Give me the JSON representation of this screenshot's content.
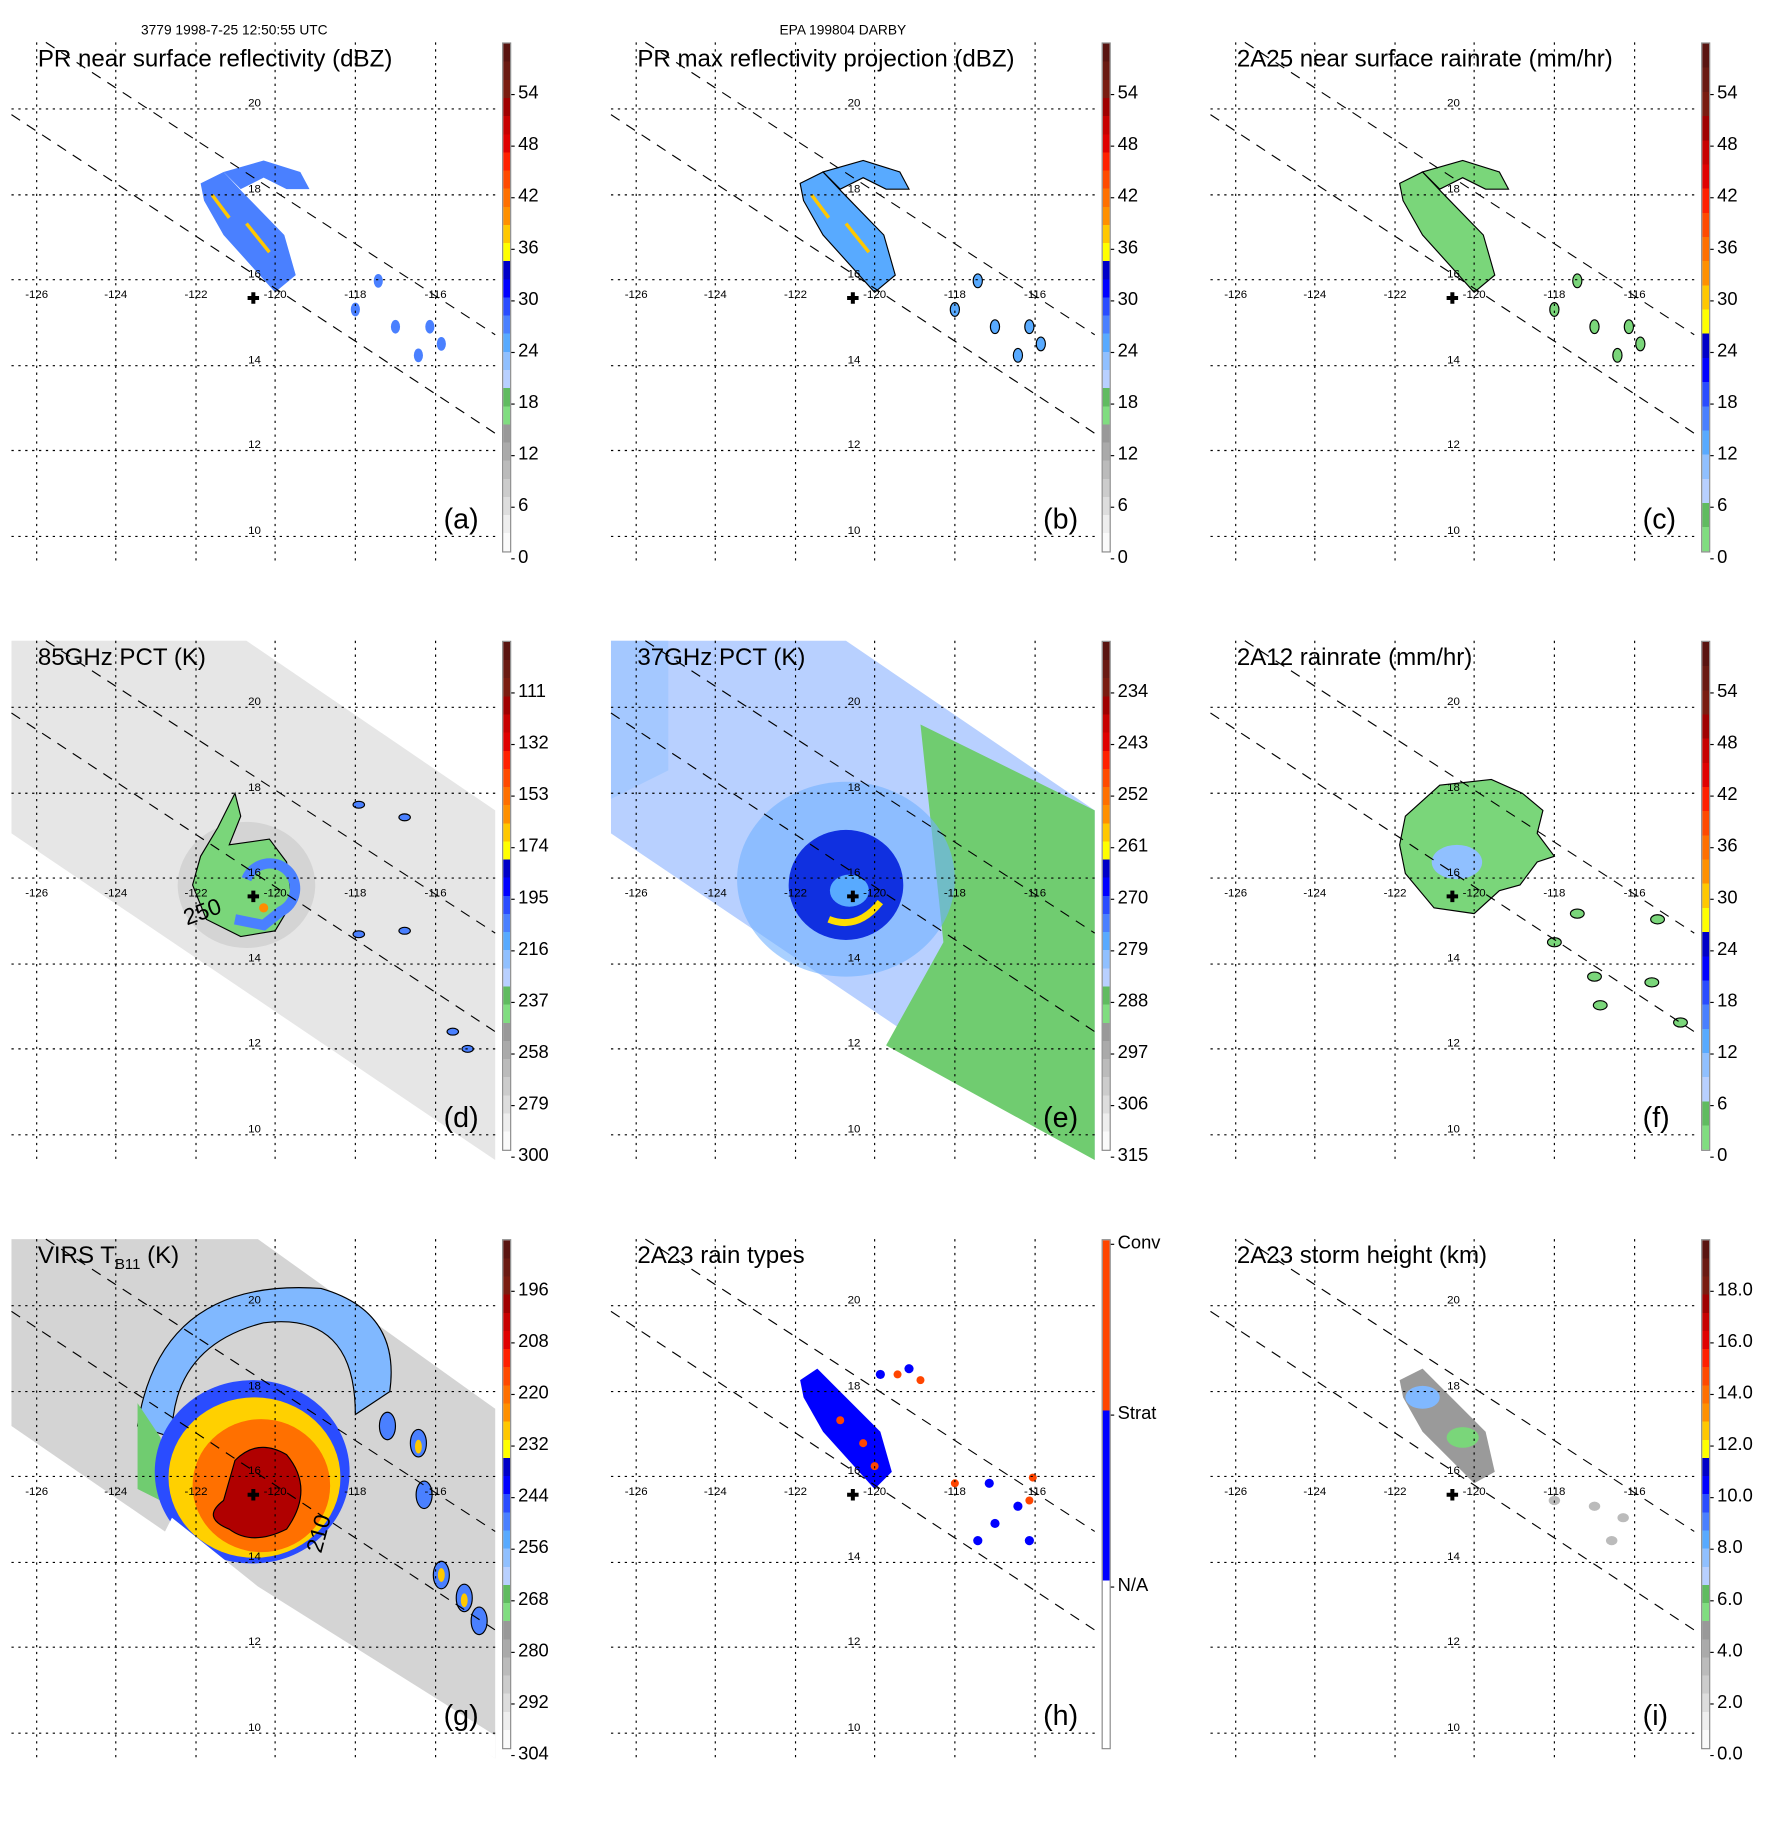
{
  "header": {
    "orbit_time": "3779 1998-7-25 12:50:55 UTC",
    "storm_id": "EPA 199804 DARBY"
  },
  "axes": {
    "lon_labels": [
      "-126",
      "-124",
      "-122",
      "-120",
      "-118",
      "-116"
    ],
    "lat_labels": [
      "20",
      "18",
      "16",
      "14",
      "12",
      "10"
    ],
    "storm_center_marker": "plus-icon"
  },
  "panels": [
    {
      "title": "PR near surface reflectivity (dBZ)",
      "letter": "(a)",
      "colorbar_ticks": [
        "54",
        "48",
        "42",
        "36",
        "30",
        "24",
        "18",
        "12",
        "6",
        "0"
      ],
      "colorbar_colors": [
        "#5a1410",
        "#6a1a12",
        "#7a1c10",
        "#a00000",
        "#c80000",
        "#e00000",
        "#ff2000",
        "#ff4a00",
        "#ff7000",
        "#ff9000",
        "#ffc800",
        "#ffff00",
        "#0000c8",
        "#0000ff",
        "#2a4cff",
        "#4a80ff",
        "#58aaff",
        "#90c0ff",
        "#b8d0ff",
        "#60bb60",
        "#80dd80",
        "#999999",
        "#aaaaaa",
        "#bbbbbb",
        "#cccccc",
        "#dddddd",
        "#eeeeee",
        "#fafafa"
      ]
    },
    {
      "title": "PR max reflectivity projection (dBZ)",
      "letter": "(b)",
      "colorbar_ticks": [
        "54",
        "48",
        "42",
        "36",
        "30",
        "24",
        "18",
        "12",
        "6",
        "0"
      ],
      "colorbar_colors": [
        "#5a1410",
        "#6a1a12",
        "#7a1c10",
        "#a00000",
        "#c80000",
        "#e00000",
        "#ff2000",
        "#ff4a00",
        "#ff7000",
        "#ff9000",
        "#ffc800",
        "#ffff00",
        "#0000c8",
        "#0000ff",
        "#2a4cff",
        "#4a80ff",
        "#58aaff",
        "#90c0ff",
        "#b8d0ff",
        "#60bb60",
        "#80dd80",
        "#999999",
        "#aaaaaa",
        "#bbbbbb",
        "#cccccc",
        "#dddddd",
        "#eeeeee",
        "#fafafa"
      ]
    },
    {
      "title": "2A25 near surface rainrate (mm/hr)",
      "letter": "(c)",
      "colorbar_ticks": [
        "54",
        "48",
        "42",
        "36",
        "30",
        "24",
        "18",
        "12",
        "6",
        "0"
      ],
      "colorbar_colors": [
        "#5a1410",
        "#6a1a12",
        "#7a1c10",
        "#a00000",
        "#c80000",
        "#e00000",
        "#ff2000",
        "#ff4a00",
        "#ff7000",
        "#ff9000",
        "#ffc800",
        "#ffff00",
        "#0000c8",
        "#0000ff",
        "#2a4cff",
        "#4a80ff",
        "#58aaff",
        "#90c0ff",
        "#b8d0ff",
        "#60bb60",
        "#80dd80"
      ]
    },
    {
      "title": "85GHz PCT (K)",
      "letter": "(d)",
      "contour_label": "250",
      "colorbar_ticks": [
        "111",
        "132",
        "153",
        "174",
        "195",
        "216",
        "237",
        "258",
        "279",
        "300"
      ],
      "colorbar_colors": [
        "#5a1410",
        "#6a1a12",
        "#7a1c10",
        "#a00000",
        "#c80000",
        "#e00000",
        "#ff2000",
        "#ff4a00",
        "#ff7000",
        "#ff9000",
        "#ffc800",
        "#ffff00",
        "#0000c8",
        "#0000ff",
        "#2a4cff",
        "#4a80ff",
        "#58aaff",
        "#90c0ff",
        "#b8d0ff",
        "#60bb60",
        "#80dd80",
        "#999999",
        "#aaaaaa",
        "#bbbbbb",
        "#cccccc",
        "#dddddd",
        "#eeeeee",
        "#fafafa"
      ]
    },
    {
      "title": "37GHz PCT (K)",
      "letter": "(e)",
      "colorbar_ticks": [
        "234",
        "243",
        "252",
        "261",
        "270",
        "279",
        "288",
        "297",
        "306",
        "315"
      ],
      "colorbar_colors": [
        "#5a1410",
        "#6a1a12",
        "#7a1c10",
        "#a00000",
        "#c80000",
        "#e00000",
        "#ff2000",
        "#ff4a00",
        "#ff7000",
        "#ff9000",
        "#ffc800",
        "#ffff00",
        "#0000c8",
        "#0000ff",
        "#2a4cff",
        "#4a80ff",
        "#58aaff",
        "#90c0ff",
        "#b8d0ff",
        "#60bb60",
        "#80dd80",
        "#999999",
        "#aaaaaa",
        "#bbbbbb",
        "#cccccc",
        "#dddddd",
        "#eeeeee",
        "#fafafa"
      ]
    },
    {
      "title": "2A12 rainrate (mm/hr)",
      "letter": "(f)",
      "colorbar_ticks": [
        "54",
        "48",
        "42",
        "36",
        "30",
        "24",
        "18",
        "12",
        "6",
        "0"
      ],
      "colorbar_colors": [
        "#5a1410",
        "#6a1a12",
        "#7a1c10",
        "#a00000",
        "#c80000",
        "#e00000",
        "#ff2000",
        "#ff4a00",
        "#ff7000",
        "#ff9000",
        "#ffc800",
        "#ffff00",
        "#0000c8",
        "#0000ff",
        "#2a4cff",
        "#4a80ff",
        "#58aaff",
        "#90c0ff",
        "#b8d0ff",
        "#60bb60",
        "#80dd80"
      ]
    },
    {
      "title": "VIRS T",
      "title_sub": "B11",
      "title_suffix": " (K)",
      "letter": "(g)",
      "contour_label": "210",
      "colorbar_ticks": [
        "196",
        "208",
        "220",
        "232",
        "244",
        "256",
        "268",
        "280",
        "292",
        "304"
      ],
      "colorbar_colors": [
        "#5a1410",
        "#6a1a12",
        "#7a1c10",
        "#a00000",
        "#c80000",
        "#e00000",
        "#ff2000",
        "#ff4a00",
        "#ff7000",
        "#ff9000",
        "#ffc800",
        "#ffff00",
        "#0000c8",
        "#0000ff",
        "#2a4cff",
        "#4a80ff",
        "#58aaff",
        "#90c0ff",
        "#b8d0ff",
        "#60bb60",
        "#80dd80",
        "#999999",
        "#aaaaaa",
        "#bbbbbb",
        "#cccccc",
        "#dddddd",
        "#eeeeee",
        "#fafafa"
      ]
    },
    {
      "title": "2A23 rain types",
      "letter": "(h)",
      "colorbar_ticks": [
        "Conv",
        "Strat",
        "N/A"
      ],
      "colorbar_colors": [
        "#ff4500",
        "#0000ff",
        "#ffffff"
      ]
    },
    {
      "title": "2A23 storm height (km)",
      "letter": "(i)",
      "colorbar_ticks": [
        "18.0",
        "16.0",
        "14.0",
        "12.0",
        "10.0",
        "8.0",
        "6.0",
        "4.0",
        "2.0",
        "0.0"
      ],
      "colorbar_colors": [
        "#5a1410",
        "#6a1a12",
        "#7a1c10",
        "#a00000",
        "#c80000",
        "#e00000",
        "#ff2000",
        "#ff4a00",
        "#ff7000",
        "#ff9000",
        "#ffc800",
        "#ffff00",
        "#0000c8",
        "#0000ff",
        "#2a4cff",
        "#4a80ff",
        "#58aaff",
        "#90c0ff",
        "#b8d0ff",
        "#60bb60",
        "#80dd80",
        "#999999",
        "#aaaaaa",
        "#bbbbbb",
        "#cccccc",
        "#dddddd",
        "#eeeeee",
        "#fafafa"
      ]
    }
  ]
}
